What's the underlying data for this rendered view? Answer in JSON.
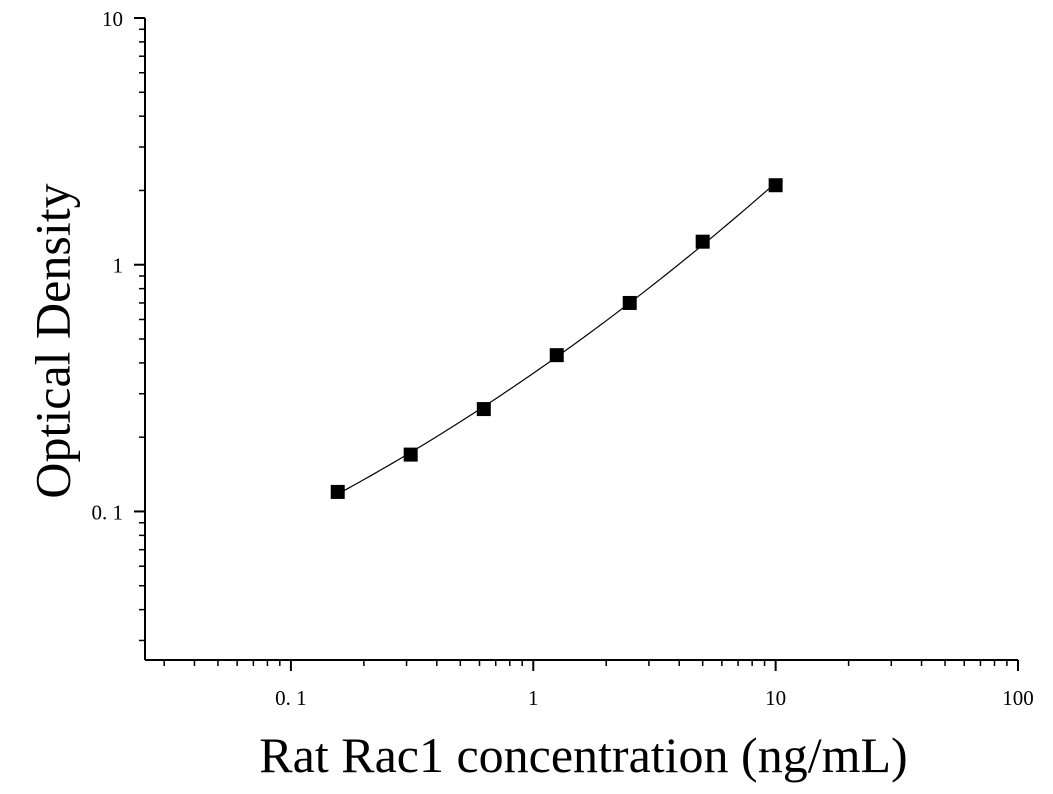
{
  "chart_data": {
    "type": "scatter",
    "title": "",
    "xlabel": "Rat Rac1 concentration (ng/mL)",
    "ylabel": "Optical Density",
    "x_scale": "log",
    "y_scale": "log",
    "xlim": [
      0.025,
      100
    ],
    "ylim": [
      0.025,
      10
    ],
    "x_ticks": [
      {
        "value": 0.1,
        "label": "0. 1"
      },
      {
        "value": 1,
        "label": "1"
      },
      {
        "value": 10,
        "label": "10"
      },
      {
        "value": 100,
        "label": "100"
      }
    ],
    "y_ticks": [
      {
        "value": 0.1,
        "label": "0. 1"
      },
      {
        "value": 1,
        "label": "1"
      },
      {
        "value": 10,
        "label": "10"
      }
    ],
    "grid": false,
    "legend": "none",
    "marker": "square",
    "marker_color": "#000000",
    "series": [
      {
        "x": [
          0.156,
          0.312,
          0.625,
          1.25,
          2.5,
          5,
          10
        ],
        "y": [
          0.12,
          0.17,
          0.26,
          0.43,
          0.7,
          1.24,
          2.1
        ]
      }
    ],
    "fit_curve": true
  }
}
